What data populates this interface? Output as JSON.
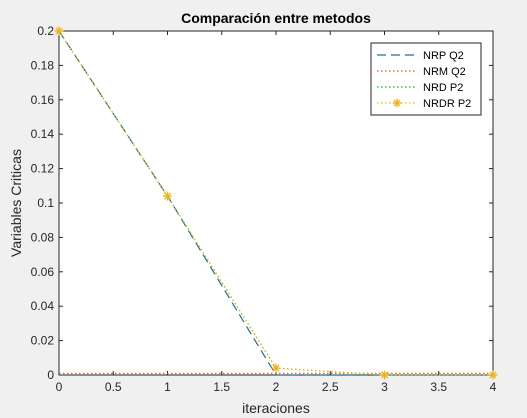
{
  "figure": {
    "background": "#f0f0f0"
  },
  "chart_data": {
    "type": "line",
    "title": "Comparación entre metodos",
    "xlabel": "iteraciones",
    "ylabel": "Variables Criticas",
    "xlim": [
      0,
      4
    ],
    "ylim": [
      0,
      0.2
    ],
    "xticks": [
      "0",
      "0.5",
      "1",
      "1.5",
      "2",
      "2.5",
      "3",
      "3.5",
      "4"
    ],
    "yticks": [
      "0",
      "0.02",
      "0.04",
      "0.06",
      "0.08",
      "0.1",
      "0.12",
      "0.14",
      "0.16",
      "0.18",
      "0.2"
    ],
    "grid": false,
    "legend_position": "top-right",
    "series": [
      {
        "name": "NRP Q2",
        "color": "#1f6f8b",
        "style": "dashed",
        "marker": "none",
        "x": [
          0,
          1,
          2,
          3,
          4
        ],
        "y": [
          0.2,
          0.104,
          0.0,
          0.0,
          0.0
        ]
      },
      {
        "name": "NRM Q2",
        "color": "#d95319",
        "style": "dotted",
        "marker": "none",
        "x": [
          0,
          1,
          2,
          3,
          4
        ],
        "y": [
          0.001,
          0.001,
          0.001,
          0.001,
          0.001
        ]
      },
      {
        "name": "NRD P2",
        "color": "#00c000",
        "style": "dotted",
        "marker": "none",
        "x": [
          0,
          1,
          2,
          3,
          4
        ],
        "y": [
          0.2,
          0.104,
          0.004,
          0.0,
          0.0
        ]
      },
      {
        "name": "NRDR P2",
        "color": "#edb120",
        "style": "dotted",
        "marker": "asterisk",
        "x": [
          0,
          1,
          2,
          3,
          4
        ],
        "y": [
          0.2,
          0.104,
          0.004,
          0.0,
          0.0
        ]
      }
    ]
  }
}
